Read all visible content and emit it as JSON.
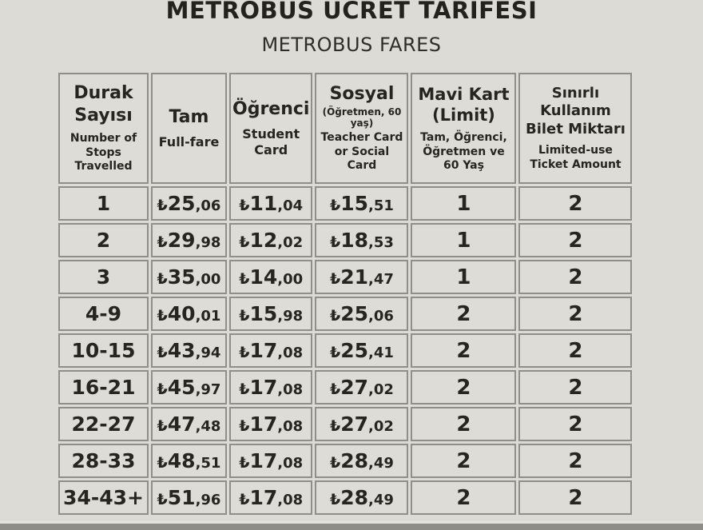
{
  "page": {
    "title": "METROBÜS ÜCRET TARİFESİ",
    "subtitle": "METROBUS FARES"
  },
  "colors": {
    "background": "#dcdbd5",
    "cell_background": "#dedcd7",
    "border": "#8f8e88",
    "text": "#26251f",
    "bottom_strip": "#8e8d87"
  },
  "table": {
    "currency_symbol": "₺",
    "columns": [
      {
        "main": "Durak Sayısı",
        "sub": "Number of Stops Travelled"
      },
      {
        "main": "Tam",
        "sub": "Full-fare"
      },
      {
        "main": "Öğrenci",
        "sub": "Student Card"
      },
      {
        "main": "Sosyal",
        "note": "(Öğretmen, 60 yaş)",
        "sub": "Teacher Card or Social Card"
      },
      {
        "main": "Mavi Kart (Limit)",
        "sub": "Tam, Öğrenci, Öğretmen ve 60 Yaş"
      },
      {
        "main": "Sınırlı Kullanım Bilet Miktarı",
        "sub": "Limited-use Ticket Amount"
      }
    ],
    "rows": [
      {
        "stops": "1",
        "full_fare": "₺25,06",
        "student": "₺11,04",
        "social": "₺15,51",
        "mavi_kart_limit": "1",
        "limited_use_tickets": "2"
      },
      {
        "stops": "2",
        "full_fare": "₺29,98",
        "student": "₺12,02",
        "social": "₺18,53",
        "mavi_kart_limit": "1",
        "limited_use_tickets": "2"
      },
      {
        "stops": "3",
        "full_fare": "₺35,00",
        "student": "₺14,00",
        "social": "₺21,47",
        "mavi_kart_limit": "1",
        "limited_use_tickets": "2"
      },
      {
        "stops": "4-9",
        "full_fare": "₺40,01",
        "student": "₺15,98",
        "social": "₺25,06",
        "mavi_kart_limit": "2",
        "limited_use_tickets": "2"
      },
      {
        "stops": "10-15",
        "full_fare": "₺43,94",
        "student": "₺17,08",
        "social": "₺25,41",
        "mavi_kart_limit": "2",
        "limited_use_tickets": "2"
      },
      {
        "stops": "16-21",
        "full_fare": "₺45,97",
        "student": "₺17,08",
        "social": "₺27,02",
        "mavi_kart_limit": "2",
        "limited_use_tickets": "2"
      },
      {
        "stops": "22-27",
        "full_fare": "₺47,48",
        "student": "₺17,08",
        "social": "₺27,02",
        "mavi_kart_limit": "2",
        "limited_use_tickets": "2"
      },
      {
        "stops": "28-33",
        "full_fare": "₺48,51",
        "student": "₺17,08",
        "social": "₺28,49",
        "mavi_kart_limit": "2",
        "limited_use_tickets": "2"
      },
      {
        "stops": "34-43+",
        "full_fare": "₺51,96",
        "student": "₺17,08",
        "social": "₺28,49",
        "mavi_kart_limit": "2",
        "limited_use_tickets": "2"
      }
    ]
  }
}
